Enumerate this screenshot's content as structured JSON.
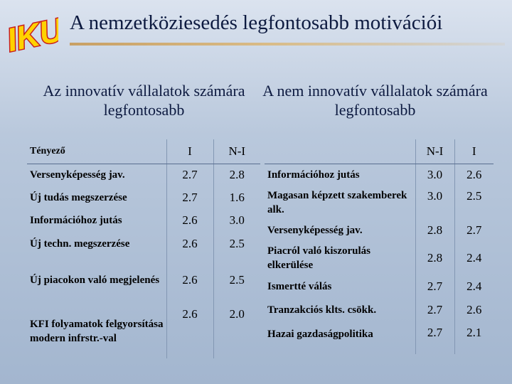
{
  "logo": {
    "text": "IKU"
  },
  "title": "A nemzetköziesedés legfontosabb motivációi",
  "subtitles": {
    "left": "Az innovatív vállalatok számára legfontosabb",
    "right": "A nem innovatív vállalatok számára legfontosabb"
  },
  "left_table": {
    "headers": {
      "factor": "Tényező",
      "col1": "I",
      "col2": "N-I"
    },
    "rows": [
      {
        "factor": "Versenyképesség jav.",
        "i": "2.7",
        "ni": "2.8"
      },
      {
        "factor": "Új tudás megszerzése",
        "i": "2.7",
        "ni": "1.6"
      },
      {
        "factor": "Információhoz jutás",
        "i": "2.6",
        "ni": "3.0"
      },
      {
        "factor": "Új techn. megszerzése",
        "i": "2.6",
        "ni": "2.5"
      },
      {
        "factor": "Új piacokon való megjelenés",
        "i": "2.6",
        "ni": "2.5"
      },
      {
        "factor": "KFI folyamatok felgyorsítása modern infrstr.-val",
        "i": "2.6",
        "ni": "2.0"
      }
    ]
  },
  "right_table": {
    "headers": {
      "factor": "",
      "col1": "N-I",
      "col2": "I"
    },
    "rows": [
      {
        "factor": "Információhoz jutás",
        "ni": "3.0",
        "i": "2.6"
      },
      {
        "factor": "Magasan képzett szakemberek alk.",
        "ni": "3.0",
        "i": "2.5"
      },
      {
        "factor": "Versenyképesség jav.",
        "ni": "2.8",
        "i": "2.7"
      },
      {
        "factor": "Piacról való kiszorulás elkerülése",
        "ni": "2.8",
        "i": "2.4"
      },
      {
        "factor": "Ismertté válás",
        "ni": "2.7",
        "i": "2.4"
      },
      {
        "factor": "Tranzakciós klts. csökk.",
        "ni": "2.7",
        "i": "2.6"
      },
      {
        "factor": "Hazai gazdaságpolitika",
        "ni": "2.7",
        "i": "2.1"
      }
    ]
  },
  "colors": {
    "title": "#0d1a40",
    "logo_fill": "#ffd200",
    "logo_outline": "#c81e1e",
    "rule": "#c8a064"
  }
}
